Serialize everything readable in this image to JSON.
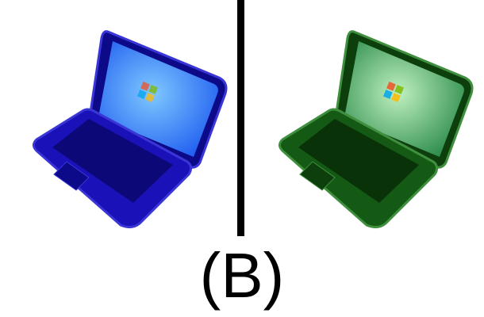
{
  "caption": "(B)",
  "panels": [
    {
      "icon": "laptop-icon",
      "tint": "blue",
      "colors": {
        "body": "#1a12b8",
        "body_dark": "#0d0a8a",
        "edge": "#3a36d6",
        "keys": "#0c0878",
        "screen": "#1e5cf0",
        "screen_glow": "#7fc8ff"
      }
    },
    {
      "icon": "laptop-icon",
      "tint": "green",
      "colors": {
        "body": "#145a14",
        "body_dark": "#0c3f0c",
        "edge": "#3f8f3f",
        "keys": "#093209",
        "screen": "#2a8a4a",
        "screen_glow": "#bff0c0"
      }
    }
  ],
  "windows_logo_colors": [
    "#f25022",
    "#7fba00",
    "#00a4ef",
    "#ffb900"
  ]
}
